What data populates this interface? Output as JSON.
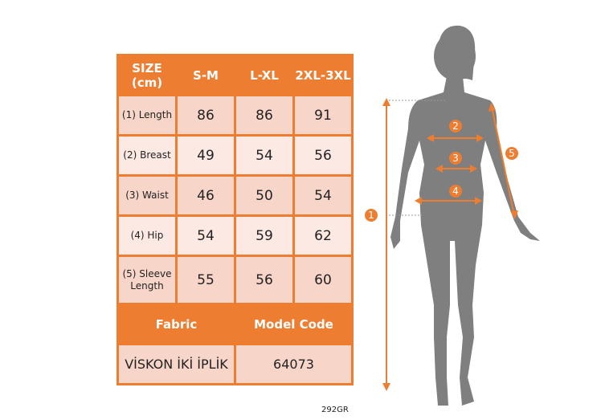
{
  "table": {
    "headers": [
      "SIZE (cm)",
      "S-M",
      "L-XL",
      "2XL-3XL"
    ],
    "rows": [
      {
        "label": "(1) Length",
        "values": [
          "86",
          "86",
          "91"
        ]
      },
      {
        "label": "(2) Breast",
        "values": [
          "49",
          "54",
          "56"
        ]
      },
      {
        "label": "(3) Waist",
        "values": [
          "46",
          "50",
          "54"
        ]
      },
      {
        "label": "(4) Hip",
        "values": [
          "54",
          "59",
          "62"
        ]
      },
      {
        "label": "(5) Sleeve Length",
        "values": [
          "55",
          "56",
          "60"
        ]
      }
    ],
    "fabric_header": "Fabric",
    "model_code_header": "Model Code",
    "fabric_value": "VİSKON İKİ İPLİK",
    "model_code_value": "64073"
  },
  "footer_code": "292GR",
  "markers": [
    "1",
    "2",
    "3",
    "4",
    "5"
  ],
  "colors": {
    "accent": "#ed7d31",
    "row_dark": "#f8d5c9",
    "row_light": "#fce9e3",
    "silhouette": "#7f7f7f"
  }
}
